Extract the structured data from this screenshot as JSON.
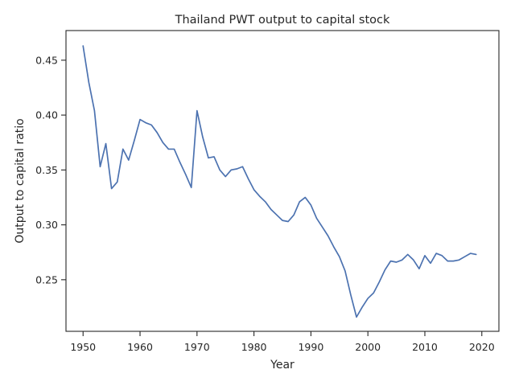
{
  "chart_data": {
    "type": "line",
    "title": "Thailand PWT output to capital stock",
    "xlabel": "Year",
    "ylabel": "Output to capital ratio",
    "xlim": [
      1947,
      2023
    ],
    "ylim": [
      0.203,
      0.477
    ],
    "xticks": [
      1950,
      1960,
      1970,
      1980,
      1990,
      2000,
      2010,
      2020
    ],
    "yticks": [
      0.25,
      0.3,
      0.35,
      0.4,
      0.45
    ],
    "ytick_labels": [
      "0.25",
      "0.30",
      "0.35",
      "0.40",
      "0.45"
    ],
    "grid": false,
    "color": "#4c72b0",
    "series": [
      {
        "x": [
          1950,
          1951,
          1952,
          1953,
          1954,
          1955,
          1956,
          1957,
          1958,
          1959,
          1960,
          1961,
          1962,
          1963,
          1964,
          1965,
          1966,
          1967,
          1968,
          1969,
          1970,
          1971,
          1972,
          1973,
          1974,
          1975,
          1976,
          1977,
          1978,
          1979,
          1980,
          1981,
          1982,
          1983,
          1984,
          1985,
          1986,
          1987,
          1988,
          1989,
          1990,
          1991,
          1992,
          1993,
          1994,
          1995,
          1996,
          1997,
          1998,
          1999,
          2000,
          2001,
          2002,
          2003,
          2004,
          2005,
          2006,
          2007,
          2008,
          2009,
          2010,
          2011,
          2012,
          2013,
          2014,
          2015,
          2016,
          2017,
          2018,
          2019
        ],
        "values": [
          0.463,
          0.43,
          0.404,
          0.353,
          0.374,
          0.333,
          0.339,
          0.369,
          0.359,
          0.377,
          0.396,
          0.393,
          0.391,
          0.384,
          0.375,
          0.369,
          0.369,
          0.357,
          0.346,
          0.334,
          0.404,
          0.38,
          0.361,
          0.362,
          0.35,
          0.344,
          0.35,
          0.351,
          0.353,
          0.342,
          0.332,
          0.326,
          0.321,
          0.314,
          0.309,
          0.304,
          0.303,
          0.309,
          0.321,
          0.325,
          0.318,
          0.306,
          0.298,
          0.29,
          0.28,
          0.271,
          0.258,
          0.236,
          0.216,
          0.225,
          0.233,
          0.238,
          0.248,
          0.259,
          0.267,
          0.266,
          0.268,
          0.273,
          0.268,
          0.26,
          0.272,
          0.265,
          0.274,
          0.272,
          0.267,
          0.267,
          0.268,
          0.271,
          0.274,
          0.273
        ]
      }
    ]
  }
}
